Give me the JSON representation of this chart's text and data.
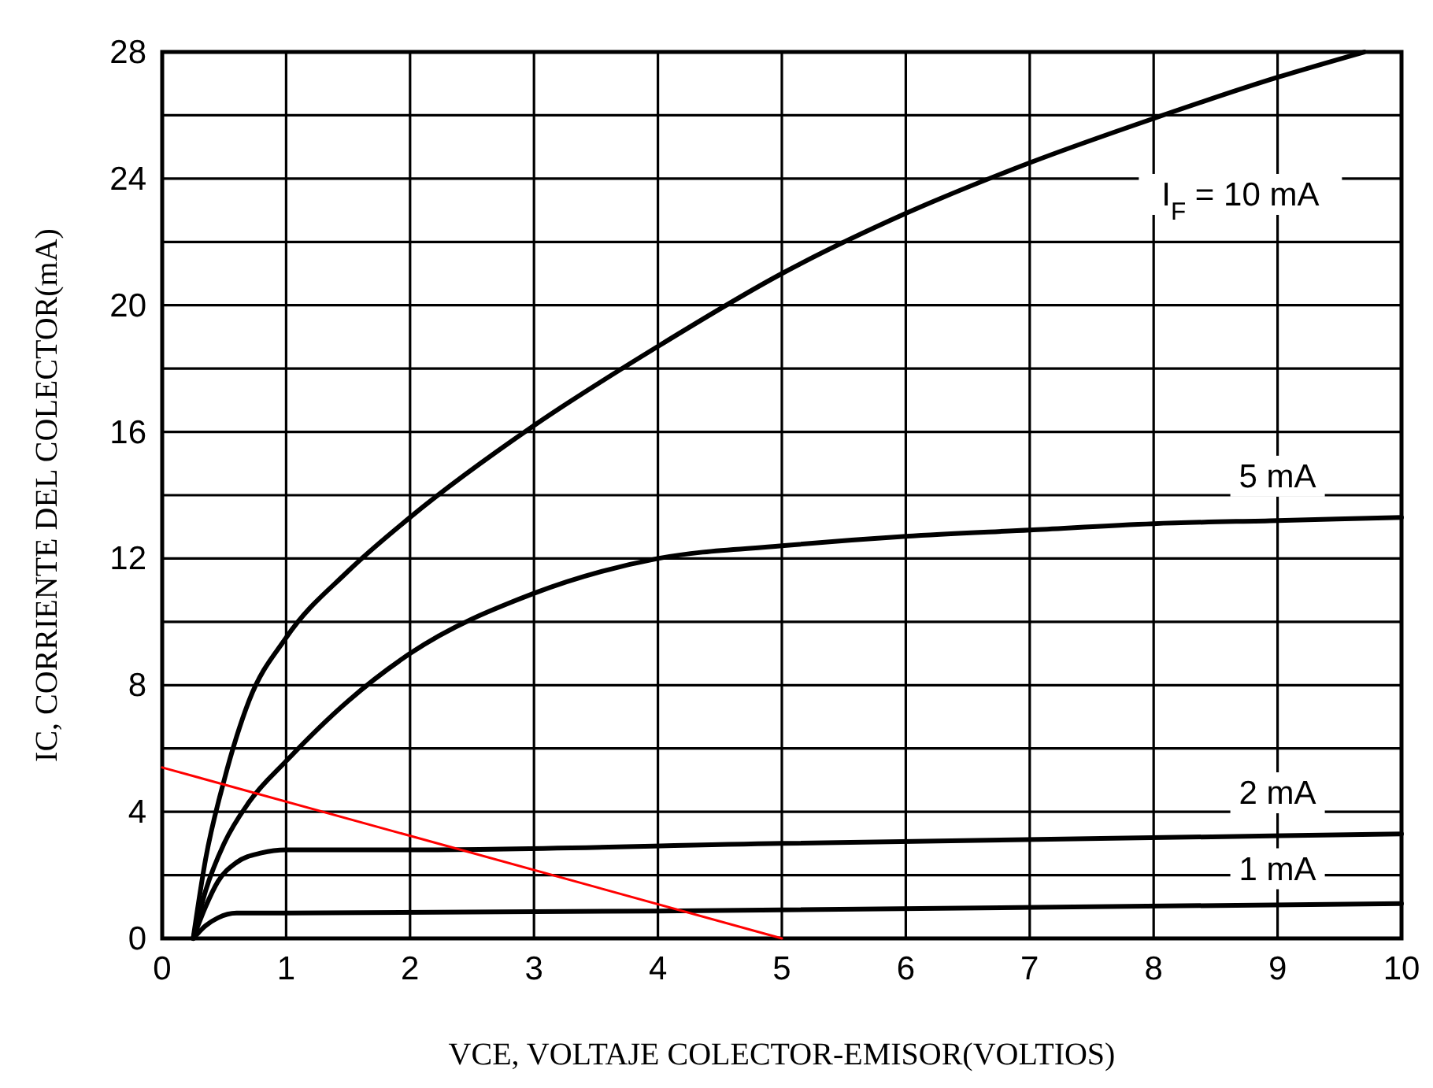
{
  "chart_data": {
    "type": "line",
    "xlabel": "VCE, VOLTAJE COLECTOR-EMISOR(VOLTIOS)",
    "ylabel": "IC, CORRIENTE DEL COLECTOR(mA)",
    "xlim": [
      0,
      10
    ],
    "ylim": [
      0,
      28
    ],
    "xticks": [
      0,
      1,
      2,
      3,
      4,
      5,
      6,
      7,
      8,
      9,
      10
    ],
    "yticks": [
      0,
      {
        "value": 2,
        "label": null
      },
      4,
      {
        "value": 6,
        "label": null
      },
      8,
      {
        "value": 10,
        "label": null
      },
      12,
      {
        "value": 14,
        "label": null
      },
      16,
      {
        "value": 18,
        "label": null
      },
      20,
      {
        "value": 22,
        "label": null
      },
      24,
      {
        "value": 26,
        "label": null
      },
      28
    ],
    "grid": true,
    "line_style": "solid",
    "marker": "none",
    "series": [
      {
        "name": "I$_{F}$ = 10 mA",
        "color": "#000000",
        "x": [
          0.25,
          0.35,
          0.5,
          0.7,
          1,
          1.5,
          2,
          3,
          4,
          5,
          6,
          7,
          8,
          9,
          9.7
        ],
        "values": [
          0,
          2.5,
          5,
          7.5,
          9.5,
          11.6,
          13.3,
          16.2,
          18.7,
          21,
          22.9,
          24.5,
          25.9,
          27.2,
          28
        ]
      },
      {
        "name": "5 mA",
        "color": "#000000",
        "x": [
          0.25,
          0.35,
          0.5,
          0.7,
          1,
          1.5,
          2,
          3,
          4,
          5,
          6,
          7,
          8,
          9,
          10
        ],
        "values": [
          0,
          1.5,
          3,
          4.3,
          5.6,
          7.5,
          9,
          10.9,
          12,
          12.4,
          12.7,
          12.9,
          13.1,
          13.2,
          13.3
        ]
      },
      {
        "name": "2 mA",
        "color": "#000000",
        "x": [
          0.25,
          0.35,
          0.45,
          0.6,
          0.8,
          1,
          2,
          5,
          10
        ],
        "values": [
          0,
          1,
          1.8,
          2.4,
          2.7,
          2.8,
          2.8,
          3,
          3.3
        ]
      },
      {
        "name": "1 mA",
        "color": "#000000",
        "x": [
          0.25,
          0.35,
          0.45,
          0.6,
          1,
          5,
          10
        ],
        "values": [
          0,
          0.4,
          0.65,
          0.8,
          0.8,
          0.9,
          1.1
        ]
      },
      {
        "color": "#ff0000",
        "x": [
          0,
          5
        ],
        "values": [
          5.4,
          0
        ]
      }
    ]
  }
}
